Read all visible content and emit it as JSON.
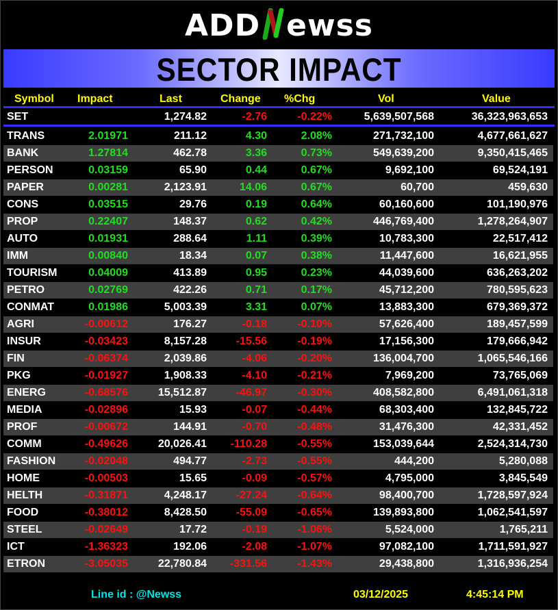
{
  "logo": {
    "text_left": "ADD",
    "text_n": "N",
    "text_right": "ewss"
  },
  "banner_title": "SECTOR IMPACT",
  "columns": [
    "Symbol",
    "Impact",
    "Last",
    "Change",
    "%Chg",
    "Vol",
    "Value"
  ],
  "index_row": {
    "symbol": "SET",
    "impact": "",
    "last": "1,274.82",
    "change": "-2.76",
    "pct": "-0.22%",
    "vol": "5,639,507,568",
    "value": "36,323,963,653",
    "dir": "dn"
  },
  "rows": [
    {
      "symbol": "TRANS",
      "impact": "2.01971",
      "last": "211.12",
      "change": "4.30",
      "pct": "2.08%",
      "vol": "271,732,100",
      "value": "4,677,661,627",
      "dir": "up"
    },
    {
      "symbol": "BANK",
      "impact": "1.27814",
      "last": "462.78",
      "change": "3.36",
      "pct": "0.73%",
      "vol": "549,639,200",
      "value": "9,350,415,465",
      "dir": "up"
    },
    {
      "symbol": "PERSON",
      "impact": "0.03159",
      "last": "65.90",
      "change": "0.44",
      "pct": "0.67%",
      "vol": "9,692,100",
      "value": "69,524,191",
      "dir": "up"
    },
    {
      "symbol": "PAPER",
      "impact": "0.00281",
      "last": "2,123.91",
      "change": "14.06",
      "pct": "0.67%",
      "vol": "60,700",
      "value": "459,630",
      "dir": "up"
    },
    {
      "symbol": "CONS",
      "impact": "0.03515",
      "last": "29.76",
      "change": "0.19",
      "pct": "0.64%",
      "vol": "60,160,600",
      "value": "101,190,976",
      "dir": "up"
    },
    {
      "symbol": "PROP",
      "impact": "0.22407",
      "last": "148.37",
      "change": "0.62",
      "pct": "0.42%",
      "vol": "446,769,400",
      "value": "1,278,264,907",
      "dir": "up"
    },
    {
      "symbol": "AUTO",
      "impact": "0.01931",
      "last": "288.64",
      "change": "1.11",
      "pct": "0.39%",
      "vol": "10,783,300",
      "value": "22,517,412",
      "dir": "up"
    },
    {
      "symbol": "IMM",
      "impact": "0.00840",
      "last": "18.34",
      "change": "0.07",
      "pct": "0.38%",
      "vol": "11,447,600",
      "value": "16,621,955",
      "dir": "up"
    },
    {
      "symbol": "TOURISM",
      "impact": "0.04009",
      "last": "413.89",
      "change": "0.95",
      "pct": "0.23%",
      "vol": "44,039,600",
      "value": "636,263,202",
      "dir": "up"
    },
    {
      "symbol": "PETRO",
      "impact": "0.02769",
      "last": "422.26",
      "change": "0.71",
      "pct": "0.17%",
      "vol": "45,712,200",
      "value": "780,595,623",
      "dir": "up"
    },
    {
      "symbol": "CONMAT",
      "impact": "0.01986",
      "last": "5,003.39",
      "change": "3.31",
      "pct": "0.07%",
      "vol": "13,883,300",
      "value": "679,369,372",
      "dir": "up"
    },
    {
      "symbol": "AGRI",
      "impact": "-0.00612",
      "last": "176.27",
      "change": "-0.18",
      "pct": "-0.10%",
      "vol": "57,626,400",
      "value": "189,457,599",
      "dir": "dn"
    },
    {
      "symbol": "INSUR",
      "impact": "-0.03423",
      "last": "8,157.28",
      "change": "-15.56",
      "pct": "-0.19%",
      "vol": "17,156,300",
      "value": "179,666,942",
      "dir": "dn"
    },
    {
      "symbol": "FIN",
      "impact": "-0.06374",
      "last": "2,039.86",
      "change": "-4.06",
      "pct": "-0.20%",
      "vol": "136,004,700",
      "value": "1,065,546,166",
      "dir": "dn"
    },
    {
      "symbol": "PKG",
      "impact": "-0.01927",
      "last": "1,908.33",
      "change": "-4.10",
      "pct": "-0.21%",
      "vol": "7,969,200",
      "value": "73,765,069",
      "dir": "dn"
    },
    {
      "symbol": "ENERG",
      "impact": "-0.68576",
      "last": "15,512.87",
      "change": "-46.97",
      "pct": "-0.30%",
      "vol": "408,582,800",
      "value": "6,491,061,318",
      "dir": "dn"
    },
    {
      "symbol": "MEDIA",
      "impact": "-0.02896",
      "last": "15.93",
      "change": "-0.07",
      "pct": "-0.44%",
      "vol": "68,303,400",
      "value": "132,845,722",
      "dir": "dn"
    },
    {
      "symbol": "PROF",
      "impact": "-0.00672",
      "last": "144.91",
      "change": "-0.70",
      "pct": "-0.48%",
      "vol": "31,476,300",
      "value": "42,331,452",
      "dir": "dn"
    },
    {
      "symbol": "COMM",
      "impact": "-0.49626",
      "last": "20,026.41",
      "change": "-110.28",
      "pct": "-0.55%",
      "vol": "153,039,644",
      "value": "2,524,314,730",
      "dir": "dn"
    },
    {
      "symbol": "FASHION",
      "impact": "-0.02048",
      "last": "494.77",
      "change": "-2.73",
      "pct": "-0.55%",
      "vol": "444,200",
      "value": "5,280,088",
      "dir": "dn"
    },
    {
      "symbol": "HOME",
      "impact": "-0.00503",
      "last": "15.65",
      "change": "-0.09",
      "pct": "-0.57%",
      "vol": "4,795,000",
      "value": "3,845,549",
      "dir": "dn"
    },
    {
      "symbol": "HELTH",
      "impact": "-0.31871",
      "last": "4,248.17",
      "change": "-27.24",
      "pct": "-0.64%",
      "vol": "98,400,700",
      "value": "1,728,597,924",
      "dir": "dn"
    },
    {
      "symbol": "FOOD",
      "impact": "-0.38012",
      "last": "8,428.50",
      "change": "-55.09",
      "pct": "-0.65%",
      "vol": "139,893,800",
      "value": "1,062,541,597",
      "dir": "dn"
    },
    {
      "symbol": "STEEL",
      "impact": "-0.02649",
      "last": "17.72",
      "change": "-0.19",
      "pct": "-1.06%",
      "vol": "5,524,000",
      "value": "1,765,211",
      "dir": "dn"
    },
    {
      "symbol": "ICT",
      "impact": "-1.36323",
      "last": "192.06",
      "change": "-2.08",
      "pct": "-1.07%",
      "vol": "97,082,100",
      "value": "1,711,591,927",
      "dir": "dn"
    },
    {
      "symbol": "ETRON",
      "impact": "-3.05035",
      "last": "22,780.84",
      "change": "-331.56",
      "pct": "-1.43%",
      "vol": "29,438,800",
      "value": "1,316,936,254",
      "dir": "dn"
    }
  ],
  "footer": {
    "line_id": "Line id  : @Newss",
    "date": "03/12/2025",
    "time": "4:45:14 PM"
  },
  "colors": {
    "up": "#22dd22",
    "down": "#ff1010",
    "header": "#ffff00",
    "accent": "#3030ff",
    "footer_line": "#00e5e5"
  }
}
